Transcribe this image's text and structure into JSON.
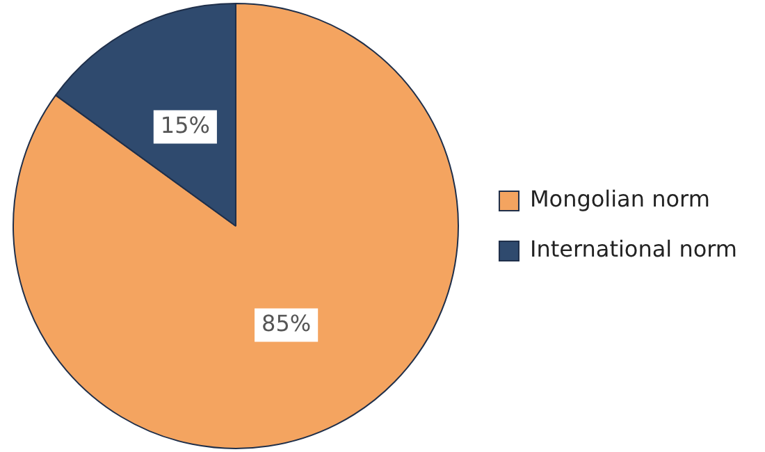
{
  "chart_data": {
    "type": "pie",
    "categories": [
      "Mongolian norm",
      "International norm"
    ],
    "values": [
      85,
      15
    ],
    "colors": [
      "#f4a460",
      "#2f4a6e"
    ],
    "value_labels": [
      "85%",
      "15%"
    ],
    "legend": "right"
  }
}
